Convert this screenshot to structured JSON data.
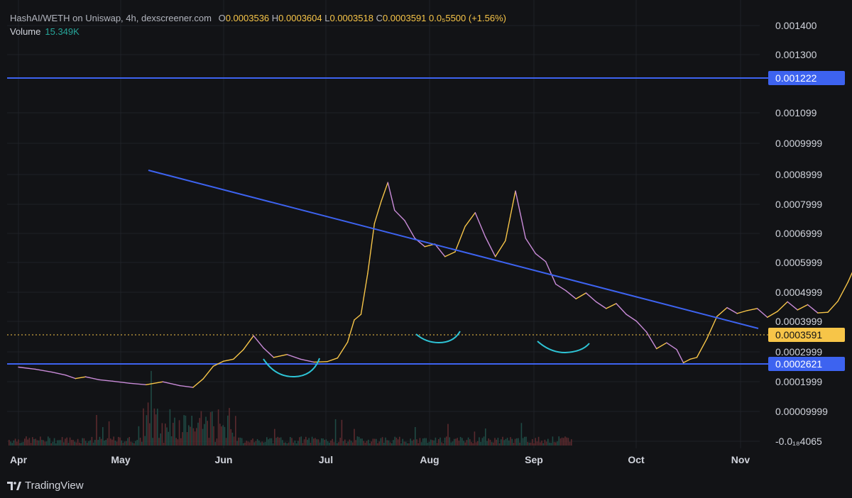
{
  "legend": {
    "symbol": "HashAI/WETH on Uniswap, 4h, dexscreener.com",
    "open_label": "O",
    "open": "0.0003536",
    "high_label": "H",
    "high": "0.0003604",
    "low_label": "L",
    "low": "0.0003518",
    "close_label": "C",
    "close": "0.0003591",
    "change": "0.0₅5500 (+1.56%)",
    "volume_label": "Volume",
    "volume_value": "15.349K"
  },
  "brand": {
    "name": "TradingView"
  },
  "colors": {
    "background": "#121316",
    "grid": "#1f2227",
    "line_up": "#f7c548",
    "line_down": "#c98bd8",
    "trendline": "#3d63f0",
    "arc": "#2ec4d6",
    "price_badge": "#f7c548",
    "level_badge": "#3d63f0"
  },
  "chart_data": {
    "type": "line",
    "x_ticks": [
      "Apr",
      "May",
      "Jun",
      "Jul",
      "Aug",
      "Sep",
      "Oct",
      "Nov"
    ],
    "y_ticks": [
      "0.001400",
      "0.001300",
      "0.001222",
      "0.001099",
      "0.0009999",
      "0.0008999",
      "0.0007999",
      "0.0006999",
      "0.0005999",
      "0.0004999",
      "0.0003999",
      "0.0003591",
      "0.0002999",
      "0.0002621",
      "0.0001999",
      "0.00009999",
      "-0.0₁₈4065"
    ],
    "ylim": [
      0,
      0.0014
    ],
    "current_price": "0.0003591",
    "horizontal_levels": [
      "0.001222",
      "0.0002621"
    ],
    "series": [
      {
        "values": [
          [
            0,
            0.000265
          ],
          [
            5,
            0.000258
          ],
          [
            10,
            0.000248
          ],
          [
            14,
            0.000238
          ],
          [
            17,
            0.000226
          ],
          [
            20,
            0.000232
          ],
          [
            24,
            0.000222
          ],
          [
            28,
            0.000217
          ],
          [
            33,
            0.00021
          ],
          [
            38,
            0.000205
          ],
          [
            43,
            0.000215
          ],
          [
            48,
            0.000202
          ],
          [
            52,
            0.000196
          ],
          [
            55,
            0.000225
          ],
          [
            58,
            0.000268
          ],
          [
            61,
            0.000285
          ],
          [
            64,
            0.000292
          ],
          [
            67,
            0.000325
          ],
          [
            70,
            0.000372
          ],
          [
            73,
            0.00033
          ],
          [
            76,
            0.000298
          ],
          [
            80,
            0.000308
          ],
          [
            84,
            0.000292
          ],
          [
            88,
            0.000282
          ],
          [
            92,
            0.000284
          ],
          [
            95,
            0.000296
          ],
          [
            98,
            0.00035
          ],
          [
            100,
            0.000426
          ],
          [
            102,
            0.000445
          ],
          [
            104,
            0.000585
          ],
          [
            106,
            0.000755
          ],
          [
            108,
            0.00083
          ],
          [
            110,
            0.000895
          ],
          [
            112,
            0.0008
          ],
          [
            115,
            0.000765
          ],
          [
            118,
            0.000705
          ],
          [
            121,
            0.000676
          ],
          [
            124,
            0.000685
          ],
          [
            127,
            0.000642
          ],
          [
            130,
            0.000658
          ],
          [
            133,
            0.000745
          ],
          [
            136,
            0.000792
          ],
          [
            139,
            0.00071
          ],
          [
            142,
            0.000642
          ],
          [
            145,
            0.000696
          ],
          [
            148,
            0.000866
          ],
          [
            151,
            0.000705
          ],
          [
            154,
            0.000652
          ],
          [
            157,
            0.000625
          ],
          [
            160,
            0.000548
          ],
          [
            163,
            0.000526
          ],
          [
            166,
            0.000498
          ],
          [
            169,
            0.000518
          ],
          [
            172,
            0.000488
          ],
          [
            175,
            0.000465
          ],
          [
            178,
            0.000482
          ],
          [
            181,
            0.000445
          ],
          [
            184,
            0.000422
          ],
          [
            187,
            0.000385
          ],
          [
            190,
            0.000328
          ],
          [
            193,
            0.000348
          ],
          [
            196,
            0.000325
          ],
          [
            198,
            0.00028
          ],
          [
            200,
            0.000292
          ],
          [
            202,
            0.000298
          ],
          [
            205,
            0.000362
          ],
          [
            208,
            0.000438
          ],
          [
            211,
            0.000468
          ],
          [
            214,
            0.000448
          ],
          [
            217,
            0.000458
          ],
          [
            220,
            0.000465
          ],
          [
            223,
            0.000435
          ],
          [
            226,
            0.000455
          ],
          [
            229,
            0.000488
          ],
          [
            232,
            0.00046
          ],
          [
            235,
            0.000478
          ],
          [
            238,
            0.00045
          ],
          [
            241,
            0.000452
          ],
          [
            244,
            0.00049
          ],
          [
            247,
            0.000555
          ],
          [
            250,
            0.000632
          ],
          [
            253,
            0.000548
          ],
          [
            256,
            0.00061
          ],
          [
            259,
            0.000635
          ],
          [
            262,
            0.000712
          ],
          [
            265,
            0.000622
          ],
          [
            268,
            0.000555
          ],
          [
            271,
            0.000528
          ],
          [
            274,
            0.000508
          ],
          [
            277,
            0.000515
          ],
          [
            280,
            0.000518
          ],
          [
            283,
            0.000492
          ],
          [
            286,
            0.000475
          ],
          [
            289,
            0.000438
          ],
          [
            292,
            0.000382
          ],
          [
            295,
            0.000352
          ],
          [
            297,
            0.000362
          ],
          [
            300,
            0.00037
          ],
          [
            303,
            0.000385
          ],
          [
            306,
            0.000408
          ],
          [
            309,
            0.000445
          ],
          [
            312,
            0.000468
          ],
          [
            315,
            0.000505
          ],
          [
            318,
            0.000535
          ],
          [
            321,
            0.000502
          ],
          [
            324,
            0.000572
          ],
          [
            327,
            0.000645
          ],
          [
            330,
            0.000568
          ],
          [
            333,
            0.000538
          ],
          [
            336,
            0.000535
          ],
          [
            339,
            0.000502
          ],
          [
            342,
            0.000465
          ],
          [
            345,
            0.000508
          ],
          [
            348,
            0.000478
          ],
          [
            351,
            0.000462
          ],
          [
            354,
            0.000468
          ],
          [
            357,
            0.000432
          ],
          [
            360,
            0.000435
          ],
          [
            363,
            0.000412
          ],
          [
            366,
            0.000398
          ],
          [
            369,
            0.000385
          ],
          [
            372,
            0.000375
          ],
          [
            375,
            0.000368
          ],
          [
            378,
            0.000358
          ],
          [
            381,
            0.000335
          ],
          [
            384,
            0.000338
          ],
          [
            387,
            0.000342
          ],
          [
            389,
            0.000348
          ],
          [
            391,
            0.00035
          ],
          [
            393,
            0.000359
          ]
        ]
      }
    ],
    "x_unit": "days since Apr 1"
  }
}
